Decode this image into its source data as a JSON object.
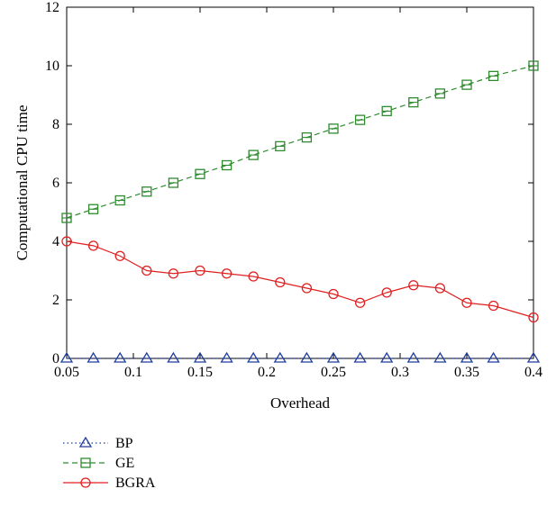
{
  "chart_data": {
    "type": "line",
    "xlabel": "Overhead",
    "ylabel": "Computational CPU time",
    "xlim": [
      0.05,
      0.4
    ],
    "ylim": [
      0,
      12
    ],
    "xticks": [
      0.05,
      0.1,
      0.15,
      0.2,
      0.25,
      0.3,
      0.35,
      0.4
    ],
    "xtick_labels": [
      "0.05",
      "0.1",
      "0.15",
      "0.2",
      "0.25",
      "0.3",
      "0.35",
      "0.4"
    ],
    "yticks": [
      0,
      2,
      4,
      6,
      8,
      10,
      12
    ],
    "ytick_labels": [
      "0",
      "2",
      "4",
      "6",
      "8",
      "10",
      "12"
    ],
    "grid": false,
    "legend_position": "bottom-left, below plot",
    "x": [
      0.05,
      0.07,
      0.09,
      0.11,
      0.13,
      0.15,
      0.17,
      0.19,
      0.21,
      0.23,
      0.25,
      0.27,
      0.29,
      0.31,
      0.33,
      0.35,
      0.37,
      0.4
    ],
    "series": [
      {
        "name": "BP",
        "color": "#1f3f9f",
        "marker": "triangle",
        "line": "dotted",
        "values": [
          0,
          0,
          0,
          0,
          0,
          0,
          0,
          0,
          0,
          0,
          0,
          0,
          0,
          0,
          0,
          0,
          0,
          0
        ]
      },
      {
        "name": "GE",
        "color": "#2e8b2e",
        "marker": "square",
        "line": "dashed",
        "values": [
          4.8,
          5.1,
          5.4,
          5.7,
          6.0,
          6.3,
          6.6,
          6.95,
          7.25,
          7.55,
          7.85,
          8.15,
          8.45,
          8.75,
          9.05,
          9.35,
          9.65,
          10.0
        ]
      },
      {
        "name": "BGRA",
        "color": "#e02020",
        "marker": "circle",
        "line": "solid",
        "values": [
          4.0,
          3.85,
          3.5,
          3.0,
          2.9,
          3.0,
          2.9,
          2.8,
          2.6,
          2.4,
          2.2,
          1.9,
          2.25,
          2.5,
          2.4,
          1.9,
          1.8,
          1.4
        ]
      }
    ]
  }
}
